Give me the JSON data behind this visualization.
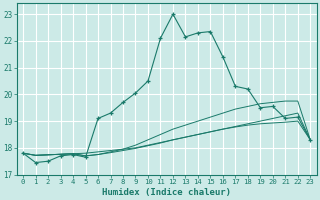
{
  "xlabel": "Humidex (Indice chaleur)",
  "bg_color": "#cceae7",
  "grid_color": "#ffffff",
  "line_color": "#1a7a6a",
  "xlim": [
    -0.5,
    23.5
  ],
  "ylim": [
    17.0,
    23.4
  ],
  "yticks": [
    17,
    18,
    19,
    20,
    21,
    22,
    23
  ],
  "xticks": [
    0,
    1,
    2,
    3,
    4,
    5,
    6,
    7,
    8,
    9,
    10,
    11,
    12,
    13,
    14,
    15,
    16,
    17,
    18,
    19,
    20,
    21,
    22,
    23
  ],
  "main_line": [
    17.8,
    17.45,
    17.5,
    17.7,
    17.75,
    17.65,
    19.1,
    19.3,
    19.7,
    20.05,
    20.5,
    22.1,
    23.0,
    22.15,
    22.3,
    22.35,
    21.4,
    20.3,
    20.2,
    19.5,
    19.55,
    19.1,
    19.15,
    18.3
  ],
  "trend1": [
    17.8,
    17.72,
    17.74,
    17.76,
    17.78,
    17.8,
    17.85,
    17.9,
    17.95,
    18.0,
    18.1,
    18.2,
    18.3,
    18.4,
    18.5,
    18.6,
    18.7,
    18.8,
    18.9,
    19.0,
    19.1,
    19.2,
    19.3,
    18.3
  ],
  "trend2": [
    17.8,
    17.72,
    17.74,
    17.76,
    17.78,
    17.7,
    17.75,
    17.85,
    17.95,
    18.1,
    18.3,
    18.5,
    18.7,
    18.85,
    19.0,
    19.15,
    19.3,
    19.45,
    19.55,
    19.65,
    19.7,
    19.75,
    19.75,
    18.3
  ],
  "trend3": [
    17.8,
    17.72,
    17.74,
    17.76,
    17.78,
    17.7,
    17.75,
    17.82,
    17.9,
    17.98,
    18.08,
    18.18,
    18.3,
    18.4,
    18.5,
    18.6,
    18.7,
    18.78,
    18.85,
    18.9,
    18.93,
    18.96,
    19.0,
    18.3
  ],
  "figwidth": 3.2,
  "figheight": 2.0,
  "dpi": 100
}
